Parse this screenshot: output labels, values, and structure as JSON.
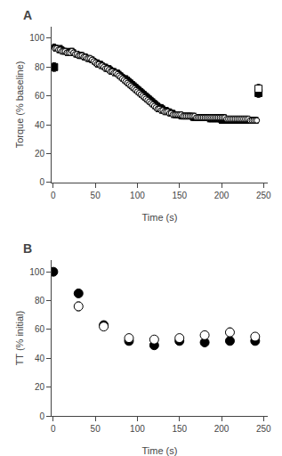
{
  "chart_data": [
    {
      "type": "scatter",
      "title": "A",
      "x_label": "Time (s)",
      "y_label": "Torque (% baseline)",
      "xlim": [
        -2,
        255
      ],
      "ylim": [
        0,
        108
      ],
      "xticks": [
        0,
        50,
        100,
        150,
        200,
        250
      ],
      "yticks": [
        0,
        20,
        40,
        60,
        80,
        100
      ],
      "grid": false,
      "series": [
        {
          "marker": "circle",
          "color": "black",
          "x": [
            1,
            3,
            5,
            7,
            9,
            11,
            13,
            15,
            17,
            19,
            21,
            23,
            25,
            27,
            29,
            31,
            33,
            35,
            37,
            39,
            41,
            43,
            45,
            47,
            49,
            51,
            53,
            55,
            57,
            59,
            61,
            63,
            65,
            67,
            69,
            71,
            73,
            75,
            77,
            79,
            81,
            83,
            85,
            87,
            89,
            91,
            93,
            95,
            97,
            99,
            101,
            103,
            105,
            107,
            109,
            111,
            113,
            115,
            117,
            119,
            121,
            123,
            125,
            127,
            129,
            131,
            133,
            135,
            137,
            139,
            141,
            143,
            145,
            147,
            149,
            151,
            153,
            155,
            157,
            159,
            161,
            163,
            165,
            167,
            169,
            171,
            173,
            175,
            177,
            179,
            181,
            183,
            185,
            187,
            189,
            191,
            193,
            195,
            197,
            199,
            201,
            203,
            205,
            207,
            209,
            211,
            213,
            215,
            217,
            219,
            221,
            223,
            225,
            227,
            229,
            231,
            233,
            235,
            237,
            239,
            241
          ],
          "values": [
            94,
            93,
            93,
            92,
            93,
            92,
            91,
            91,
            90,
            91,
            90,
            91,
            90,
            89,
            89,
            88,
            88,
            88,
            87,
            87,
            86,
            86,
            85,
            85,
            84,
            83,
            83,
            82,
            82,
            81,
            80,
            80,
            79,
            79,
            78,
            77,
            77,
            76,
            76,
            75,
            74,
            73,
            72,
            72,
            71,
            70,
            69,
            68,
            67,
            66,
            65,
            64,
            63,
            62,
            61,
            60,
            59,
            58,
            57,
            56,
            55,
            54,
            53,
            52,
            52,
            51,
            50,
            50,
            49,
            49,
            48,
            48,
            47,
            47,
            47,
            46,
            46,
            46,
            46,
            46,
            46,
            46,
            45,
            45,
            45,
            45,
            45,
            45,
            45,
            45,
            45,
            45,
            44,
            44,
            44,
            44,
            44,
            44,
            44,
            43,
            43,
            43,
            43,
            43,
            43,
            43,
            43,
            43,
            43,
            43,
            43,
            43,
            43,
            43,
            43,
            43,
            43,
            43,
            43,
            43,
            43
          ],
          "yerr": [
            2,
            2,
            2,
            2,
            2,
            2,
            2,
            2,
            2,
            2,
            2,
            2,
            2,
            2,
            2,
            2,
            2,
            2,
            2,
            2,
            2,
            2,
            2,
            2,
            2,
            2,
            2,
            2,
            2,
            2,
            2,
            2,
            2,
            2,
            2,
            2,
            2,
            2,
            2,
            2,
            2,
            2,
            2,
            2,
            2,
            2,
            2,
            2,
            2,
            2,
            2,
            2,
            2,
            2,
            2,
            2,
            2,
            2,
            2,
            2,
            2,
            2,
            2,
            2,
            2,
            2,
            2,
            2,
            2,
            2,
            2,
            2,
            2,
            2,
            2,
            2,
            2,
            2,
            2,
            2,
            2,
            2,
            2,
            2,
            2,
            2,
            2,
            2,
            2,
            2,
            2,
            2,
            2,
            2,
            2,
            2,
            2,
            2,
            2,
            2,
            2,
            2,
            2,
            2,
            2,
            2,
            2,
            2,
            2,
            2,
            2,
            2,
            2,
            2,
            2,
            2,
            2,
            2,
            2,
            2,
            2
          ]
        },
        {
          "marker": "circle-open",
          "color": "black",
          "x": [
            2,
            4,
            6,
            8,
            10,
            12,
            14,
            16,
            18,
            20,
            22,
            24,
            26,
            28,
            30,
            32,
            34,
            36,
            38,
            40,
            42,
            44,
            46,
            48,
            50,
            52,
            54,
            56,
            58,
            60,
            62,
            64,
            66,
            68,
            70,
            72,
            74,
            76,
            78,
            80,
            82,
            84,
            86,
            88,
            90,
            92,
            94,
            96,
            98,
            100,
            102,
            104,
            106,
            108,
            110,
            112,
            114,
            116,
            118,
            120,
            122,
            124,
            126,
            128,
            130,
            132,
            134,
            136,
            138,
            140,
            142,
            144,
            146,
            148,
            150,
            152,
            154,
            156,
            158,
            160,
            162,
            164,
            166,
            168,
            170,
            172,
            174,
            176,
            178,
            180,
            182,
            184,
            186,
            188,
            190,
            192,
            194,
            196,
            198,
            200,
            202,
            204,
            206,
            208,
            210,
            212,
            214,
            216,
            218,
            220,
            222,
            224,
            226,
            228,
            230,
            232,
            234,
            236,
            238,
            240,
            242
          ],
          "values": [
            93,
            93,
            92,
            92,
            91,
            91,
            91,
            90,
            90,
            90,
            91,
            90,
            89,
            89,
            88,
            88,
            88,
            87,
            87,
            86,
            86,
            86,
            85,
            84,
            83,
            82,
            82,
            81,
            81,
            80,
            79,
            79,
            78,
            77,
            77,
            76,
            76,
            75,
            74,
            73,
            72,
            71,
            70,
            69,
            68,
            67,
            66,
            65,
            64,
            63,
            62,
            61,
            60,
            59,
            58,
            57,
            56,
            55,
            54,
            53,
            52,
            51,
            51,
            50,
            50,
            49,
            49,
            49,
            48,
            48,
            47,
            47,
            47,
            47,
            47,
            47,
            46,
            46,
            46,
            46,
            46,
            46,
            46,
            46,
            45,
            45,
            45,
            45,
            45,
            45,
            45,
            45,
            45,
            45,
            45,
            45,
            45,
            45,
            45,
            45,
            45,
            45,
            44,
            44,
            44,
            44,
            44,
            44,
            44,
            44,
            44,
            44,
            44,
            44,
            44,
            44,
            43,
            43,
            43,
            43,
            43
          ],
          "yerr": [
            2,
            2,
            2,
            2,
            2,
            2,
            2,
            2,
            2,
            2,
            2,
            2,
            2,
            2,
            2,
            2,
            2,
            2,
            2,
            2,
            2,
            2,
            2,
            2,
            2,
            2,
            2,
            2,
            2,
            2,
            2,
            2,
            2,
            2,
            2,
            2,
            2,
            2,
            2,
            2,
            2,
            2,
            2,
            2,
            2,
            2,
            2,
            2,
            2,
            2,
            2,
            2,
            2,
            2,
            2,
            2,
            2,
            2,
            2,
            2,
            2,
            2,
            2,
            2,
            2,
            2,
            2,
            2,
            2,
            2,
            2,
            2,
            2,
            2,
            2,
            2,
            2,
            2,
            2,
            2,
            2,
            2,
            2,
            2,
            2,
            2,
            2,
            2,
            2,
            2,
            2,
            2,
            2,
            2,
            2,
            2,
            2,
            2,
            2,
            2,
            2,
            2,
            2,
            2,
            2,
            2,
            2,
            2,
            2,
            2,
            2,
            2,
            2,
            2,
            2,
            2,
            2,
            2,
            2,
            2,
            2
          ]
        },
        {
          "marker": "square",
          "color": "black",
          "x": [
            1
          ],
          "values": [
            80
          ],
          "yerr": [
            3
          ]
        },
        {
          "marker": "square",
          "color": "black",
          "x": [
            244
          ],
          "values": [
            62
          ],
          "yerr": [
            3
          ]
        },
        {
          "marker": "square-open",
          "color": "black",
          "x": [
            244
          ],
          "values": [
            65
          ],
          "yerr": [
            3
          ]
        }
      ]
    },
    {
      "type": "scatter",
      "title": "B",
      "x_label": "Time (s)",
      "y_label": "TT (% initial)",
      "xlim": [
        -2,
        255
      ],
      "ylim": [
        0,
        108
      ],
      "xticks": [
        0,
        50,
        100,
        150,
        200,
        250
      ],
      "yticks": [
        0,
        20,
        40,
        60,
        80,
        100
      ],
      "grid": false,
      "series": [
        {
          "marker": "circle",
          "color": "black",
          "x": [
            0,
            30,
            60,
            90,
            120,
            150,
            180,
            210,
            240
          ],
          "values": [
            100,
            85,
            63,
            52,
            49,
            52,
            51,
            52,
            52
          ],
          "yerr": [
            0,
            2,
            2,
            2,
            2,
            2,
            2,
            2,
            2
          ]
        },
        {
          "marker": "circle-open",
          "color": "black",
          "x": [
            30,
            60,
            90,
            120,
            150,
            180,
            210,
            240
          ],
          "values": [
            76,
            62,
            54,
            53,
            54,
            56,
            58,
            55
          ],
          "yerr": [
            3,
            2,
            2,
            2,
            2,
            2,
            3,
            2
          ]
        }
      ]
    }
  ]
}
